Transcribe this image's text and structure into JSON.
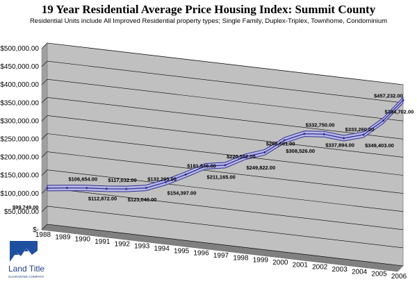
{
  "chart_data": {
    "type": "line",
    "title": "19 Year Residential Average Price Housing Index: Summit County",
    "subtitle": "Residential Units include All Improved Residential property types; Single Family, Duplex-Triplex, Townhome, Condominium",
    "categories": [
      "1988",
      "1989",
      "1990",
      "1991",
      "1992",
      "1993",
      "1994",
      "1995",
      "1996",
      "1997",
      "1998",
      "1999",
      "2000",
      "2001",
      "2002",
      "2003",
      "2004",
      "2005",
      "2006"
    ],
    "series": [
      {
        "values": [
          99749,
          106654,
          112872,
          117032,
          123040,
          132295,
          154397,
          181846,
          211165,
          220552,
          249822,
          268661,
          308526,
          332750,
          337894,
          333260,
          349403,
          394702,
          457232
        ]
      }
    ],
    "data_labels": [
      "$99,749.00",
      "$106,654.00",
      "$112,872.00",
      "$117,032.00",
      "$123,040.00",
      "$132,295.00",
      "$154,397.00",
      "$181,846.00",
      "$211,165.00",
      "$220,552.00",
      "$249,822.00",
      "$268,661.00",
      "$308,526.00",
      "$332,750.00",
      "$337,894.00",
      "$333,260.00",
      "$349,403.00",
      "$394,702.00",
      "$457,232.00"
    ],
    "ylim": [
      0,
      500000
    ],
    "yticks": [
      0,
      50000,
      100000,
      150000,
      200000,
      250000,
      300000,
      350000,
      400000,
      450000,
      500000
    ],
    "ytick_labels": [
      "$-",
      "$50,000.00",
      "$100,000.00",
      "$150,000.00",
      "$200,000.00",
      "$250,000.00",
      "$300,000.00",
      "$350,000.00",
      "$400,000.00",
      "$450,000.00",
      "$500,000.00"
    ],
    "grid": true,
    "legend": "none",
    "style": "3d-line",
    "colors": {
      "line": "#2e2e8f",
      "line_fill": "#b8b8e8",
      "plot_bg": "#c0c0c0",
      "floor": "#808080"
    }
  },
  "logo": {
    "text_line1": "Land Title",
    "text_line2": "GUARANTEE COMPANY"
  }
}
